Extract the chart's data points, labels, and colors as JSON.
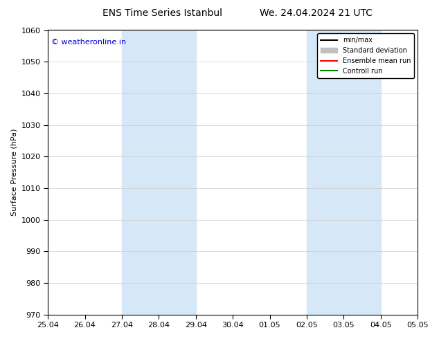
{
  "title_left": "ENS Time Series Istanbul",
  "title_right": "We. 24.04.2024 21 UTC",
  "ylabel": "Surface Pressure (hPa)",
  "ylim": [
    970,
    1060
  ],
  "yticks": [
    970,
    980,
    990,
    1000,
    1010,
    1020,
    1030,
    1040,
    1050,
    1060
  ],
  "xlim": [
    0,
    10
  ],
  "xtick_positions": [
    0,
    1,
    2,
    3,
    4,
    5,
    6,
    7,
    8,
    9,
    10
  ],
  "xtick_labels": [
    "25.04",
    "26.04",
    "27.04",
    "28.04",
    "29.04",
    "30.04",
    "01.05",
    "02.05",
    "03.05",
    "04.05",
    "05.05"
  ],
  "shaded_bands": [
    {
      "xmin": 2,
      "xmax": 4
    },
    {
      "xmin": 7,
      "xmax": 9
    }
  ],
  "shaded_color": "#d6e8f7",
  "watermark_text": "© weatheronline.in",
  "watermark_color": "#0000cc",
  "legend_items": [
    {
      "label": "min/max",
      "color": "#000000",
      "lw": 1.5,
      "style": "solid"
    },
    {
      "label": "Standard deviation",
      "color": "#c0c0c0",
      "lw": 6,
      "style": "solid"
    },
    {
      "label": "Ensemble mean run",
      "color": "#ff0000",
      "lw": 1.5,
      "style": "solid"
    },
    {
      "label": "Controll run",
      "color": "#008000",
      "lw": 1.5,
      "style": "solid"
    }
  ],
  "background_color": "#ffffff",
  "grid_color": "#cccccc",
  "figsize": [
    6.34,
    4.9
  ],
  "dpi": 100
}
